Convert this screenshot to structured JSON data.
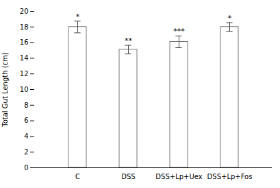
{
  "chart_data": {
    "type": "bar",
    "categories": [
      "C",
      "DSS",
      "DSS+Lp+Uex",
      "DSS+Lp+Fos"
    ],
    "values": [
      18.0,
      15.1,
      16.1,
      18.0
    ],
    "errors": [
      0.75,
      0.55,
      0.75,
      0.55
    ],
    "significance": [
      "*",
      "**",
      "***",
      "*"
    ],
    "color": "#ffffff",
    "ylabel": "Total Gut Length (cm)",
    "ylim": [
      0,
      20
    ],
    "yticks": [
      0,
      2,
      4,
      6,
      8,
      10,
      12,
      14,
      16,
      18,
      20
    ],
    "grid": false
  }
}
